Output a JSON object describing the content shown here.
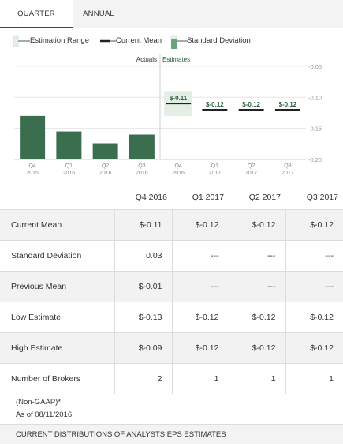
{
  "tabs": {
    "quarter": "QUARTER",
    "annual": "ANNUAL"
  },
  "legend": {
    "estimation_range": "Estimation Range",
    "current_mean": "Current Mean",
    "standard_deviation": "Standard Deviation"
  },
  "colors": {
    "actual_bar": "#3b6e4f",
    "estimate_range": "#e3efe5",
    "mean_line": "#222222",
    "estimate_text": "#2b5d3a",
    "tab_underline": "#1f4e79"
  },
  "chart_data": {
    "type": "bar",
    "section_labels": {
      "actuals": "Actuals",
      "estimates": "Estimates"
    },
    "categories": [
      {
        "q": "Q4",
        "y": "2015"
      },
      {
        "q": "Q1",
        "y": "2016"
      },
      {
        "q": "Q2",
        "y": "2016"
      },
      {
        "q": "Q3",
        "y": "2016"
      },
      {
        "q": "Q4",
        "y": "2016"
      },
      {
        "q": "Q1",
        "y": "2017"
      },
      {
        "q": "Q2",
        "y": "2017"
      },
      {
        "q": "Q3",
        "y": "2017"
      }
    ],
    "actuals": [
      -0.13,
      -0.155,
      -0.174,
      -0.16
    ],
    "estimates": [
      {
        "mean": -0.11,
        "label": "$-0.11",
        "low": -0.13,
        "high": -0.09
      },
      {
        "mean": -0.12,
        "label": "$-0.12",
        "low": -0.12,
        "high": -0.12
      },
      {
        "mean": -0.12,
        "label": "$-0.12",
        "low": -0.12,
        "high": -0.12
      },
      {
        "mean": -0.12,
        "label": "$-0.12",
        "low": -0.12,
        "high": -0.12
      }
    ],
    "yticks": [
      {
        "value": -0.05,
        "label": "-0.05"
      },
      {
        "value": -0.1,
        "label": "-0.10"
      },
      {
        "value": -0.15,
        "label": "-0.15"
      },
      {
        "value": -0.2,
        "label": "-0.20"
      }
    ],
    "ylim": [
      -0.2,
      -0.04
    ],
    "grid": true
  },
  "table": {
    "headers": [
      "",
      "Q4 2016",
      "Q1 2017",
      "Q2 2017",
      "Q3 2017"
    ],
    "rows": [
      {
        "label": "Current Mean",
        "values": [
          "$-0.11",
          "$-0.12",
          "$-0.12",
          "$-0.12"
        ]
      },
      {
        "label": "Standard Deviation",
        "values": [
          "0.03",
          "---",
          "---",
          "---"
        ]
      },
      {
        "label": "Previous Mean",
        "values": [
          "$-0.01",
          "---",
          "---",
          "---"
        ]
      },
      {
        "label": "Low Estimate",
        "values": [
          "$-0.13",
          "$-0.12",
          "$-0.12",
          "$-0.12"
        ]
      },
      {
        "label": "High Estimate",
        "values": [
          "$-0.09",
          "$-0.12",
          "$-0.12",
          "$-0.12"
        ]
      },
      {
        "label": "Number of Brokers",
        "values": [
          "2",
          "1",
          "1",
          "1"
        ]
      }
    ]
  },
  "notes": {
    "non_gaap": "(Non-GAAP)*",
    "as_of": "As of 08/11/2016"
  },
  "footer": {
    "label": "CURRENT DISTRIBUTIONS OF ANALYSTS EPS ESTIMATES"
  }
}
